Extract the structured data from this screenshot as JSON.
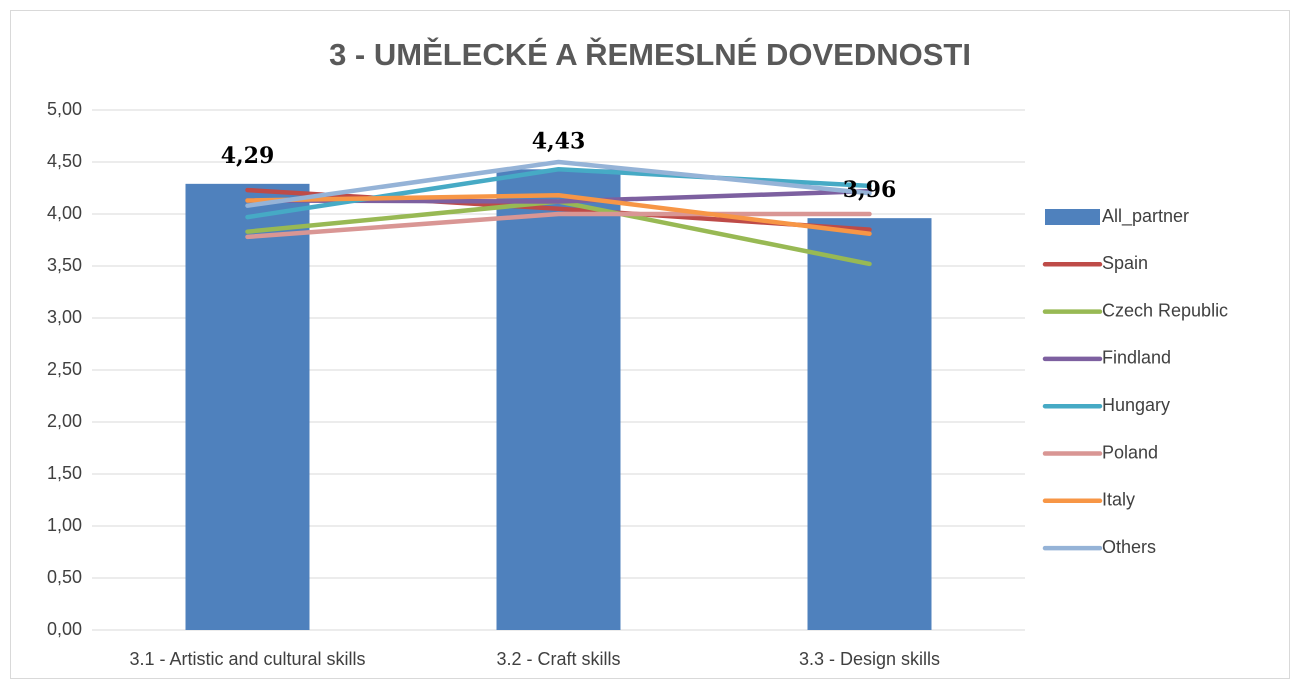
{
  "chart_data": {
    "type": "bar_line",
    "title": "3 - UMĚLECKÉ A ŘEMESLNÉ DOVEDNOSTI",
    "categories": [
      "3.1 - Artistic and cultural skills",
      "3.2 - Craft skills",
      "3.3 - Design skills"
    ],
    "bar_series": {
      "name": "All_partner",
      "color": "#4f81bd",
      "values": [
        4.29,
        4.43,
        3.96
      ],
      "value_labels": [
        "4,29",
        "4,43",
        "3,96"
      ]
    },
    "series": [
      {
        "name": "Spain",
        "color": "#be4b48",
        "values": [
          4.23,
          4.05,
          3.85
        ]
      },
      {
        "name": "Czech Republic",
        "color": "#98b954",
        "values": [
          3.83,
          4.12,
          3.52
        ]
      },
      {
        "name": "Findland",
        "color": "#7d60a0",
        "values": [
          4.13,
          4.12,
          4.22
        ]
      },
      {
        "name": "Hungary",
        "color": "#46aac5",
        "values": [
          3.97,
          4.43,
          4.27
        ]
      },
      {
        "name": "Poland",
        "color": "#d99694",
        "values": [
          3.78,
          4.0,
          4.0
        ]
      },
      {
        "name": "Italy",
        "color": "#f79646",
        "values": [
          4.13,
          4.18,
          3.81
        ]
      },
      {
        "name": "Others",
        "color": "#95b3d7",
        "values": [
          4.08,
          4.5,
          4.2
        ]
      }
    ],
    "ylim": [
      0,
      5
    ],
    "yticks": [
      {
        "value": 0,
        "label": "0,00"
      },
      {
        "value": 0.5,
        "label": "0,50"
      },
      {
        "value": 1,
        "label": "1,00"
      },
      {
        "value": 1.5,
        "label": "1,50"
      },
      {
        "value": 2,
        "label": "2,00"
      },
      {
        "value": 2.5,
        "label": "2,50"
      },
      {
        "value": 3,
        "label": "3,00"
      },
      {
        "value": 3.5,
        "label": "3,50"
      },
      {
        "value": 4,
        "label": "4,00"
      },
      {
        "value": 4.5,
        "label": "4,50"
      },
      {
        "value": 5,
        "label": "5,00"
      }
    ],
    "grid": true,
    "legend": "right"
  }
}
